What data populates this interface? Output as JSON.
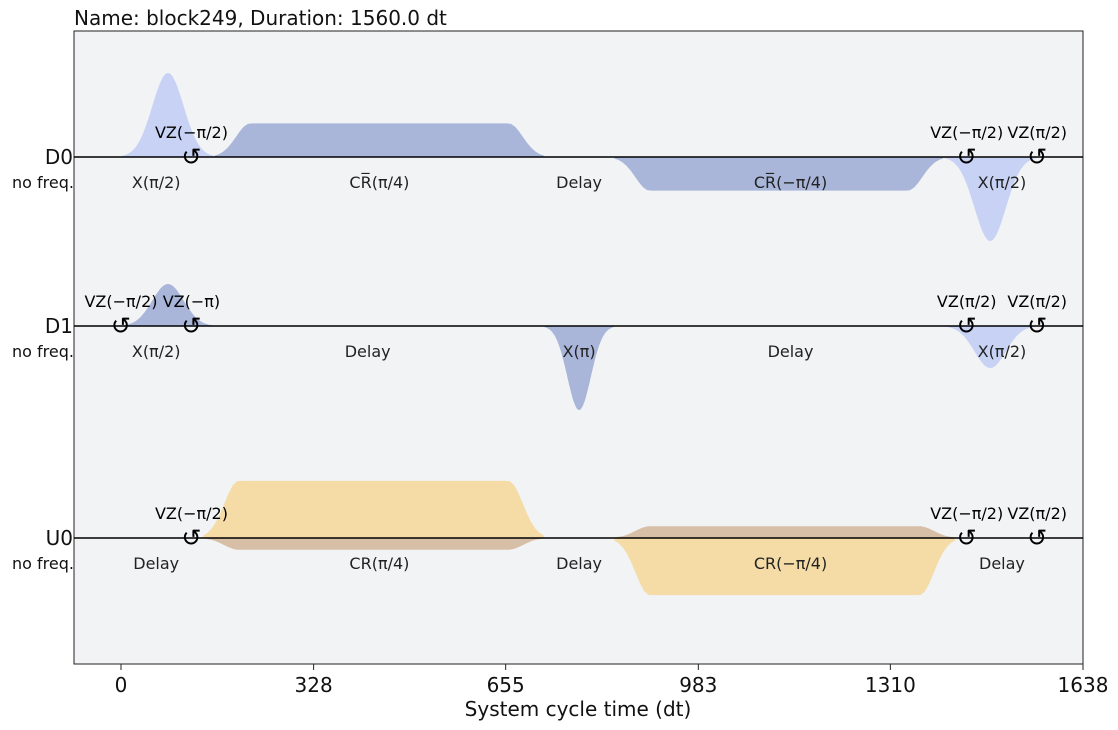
{
  "chart_data": {
    "type": "pulse-schedule",
    "title": "Name: block249, Duration: 1560.0 dt",
    "xlabel": "System cycle time (dt)",
    "xlim": [
      -80,
      1638
    ],
    "xticks": [
      0,
      328,
      655,
      983,
      1310,
      1638
    ],
    "colors": {
      "drive_x": "#c7d2f5",
      "drive_cr": "#a9b6da",
      "control_real": "#f5dca7",
      "control_imag": "#d7bea7",
      "background": "#f2f3f5"
    },
    "channels": [
      {
        "name": "D0",
        "freq_label": "no freq.",
        "pulses": [
          {
            "kind": "gauss",
            "t0": 0,
            "t1": 160,
            "amp": 1.0,
            "color": "drive_x"
          },
          {
            "kind": "flat",
            "t0": 160,
            "t1": 720,
            "amp": 0.4,
            "rise": 60,
            "color": "drive_cr"
          },
          {
            "kind": "flat",
            "t0": 840,
            "t1": 1400,
            "amp": -0.4,
            "rise": 60,
            "color": "drive_cr"
          },
          {
            "kind": "gauss",
            "t0": 1400,
            "t1": 1560,
            "amp": -1.0,
            "color": "drive_x"
          }
        ],
        "instructions": [
          {
            "label": "X(π/2)",
            "t": 60
          },
          {
            "label": "CR̅(π/4)",
            "t": 440
          },
          {
            "label": "Delay",
            "t": 780
          },
          {
            "label": "CR̅(−π/4)",
            "t": 1140
          },
          {
            "label": "X(π/2)",
            "t": 1500
          }
        ],
        "frame_changes": [
          {
            "label": "VZ(−π/2)",
            "t": 120
          },
          {
            "label": "VZ(−π/2)",
            "t": 1440
          },
          {
            "label": "VZ(π/2)",
            "t": 1560
          }
        ]
      },
      {
        "name": "D1",
        "freq_label": "no freq.",
        "pulses": [
          {
            "kind": "gauss",
            "t0": 0,
            "t1": 160,
            "amp": 0.5,
            "color": "drive_cr"
          },
          {
            "kind": "gauss",
            "t0": 720,
            "t1": 840,
            "amp": -1.0,
            "color": "drive_cr"
          },
          {
            "kind": "gauss",
            "t0": 1400,
            "t1": 1560,
            "amp": -0.5,
            "color": "drive_x"
          }
        ],
        "instructions": [
          {
            "label": "X(π/2)",
            "t": 60
          },
          {
            "label": "Delay",
            "t": 420
          },
          {
            "label": "X(π)",
            "t": 780
          },
          {
            "label": "Delay",
            "t": 1140
          },
          {
            "label": "X(π/2)",
            "t": 1500
          }
        ],
        "frame_changes": [
          {
            "label": "VZ(−π/2)",
            "t": 0
          },
          {
            "label": "VZ(−π)",
            "t": 120
          },
          {
            "label": "VZ(π/2)",
            "t": 1440
          },
          {
            "label": "VZ(π/2)",
            "t": 1560
          }
        ]
      },
      {
        "name": "U0",
        "freq_label": "no freq.",
        "pulses": [
          {
            "kind": "flat",
            "t0": 140,
            "t1": 720,
            "amp": 0.68,
            "rise": 60,
            "color": "control_real"
          },
          {
            "kind": "flat",
            "t0": 140,
            "t1": 720,
            "amp": -0.14,
            "rise": 60,
            "color": "control_imag"
          },
          {
            "kind": "flat",
            "t0": 840,
            "t1": 1420,
            "amp": 0.14,
            "rise": 60,
            "color": "control_imag"
          },
          {
            "kind": "flat",
            "t0": 840,
            "t1": 1420,
            "amp": -0.68,
            "rise": 60,
            "color": "control_real"
          }
        ],
        "instructions": [
          {
            "label": "Delay",
            "t": 60
          },
          {
            "label": "CR(π/4)",
            "t": 440
          },
          {
            "label": "Delay",
            "t": 780
          },
          {
            "label": "CR(−π/4)",
            "t": 1140
          },
          {
            "label": "Delay",
            "t": 1500
          }
        ],
        "frame_changes": [
          {
            "label": "VZ(−π/2)",
            "t": 120
          },
          {
            "label": "VZ(−π/2)",
            "t": 1440
          },
          {
            "label": "VZ(π/2)",
            "t": 1560
          }
        ]
      }
    ]
  }
}
